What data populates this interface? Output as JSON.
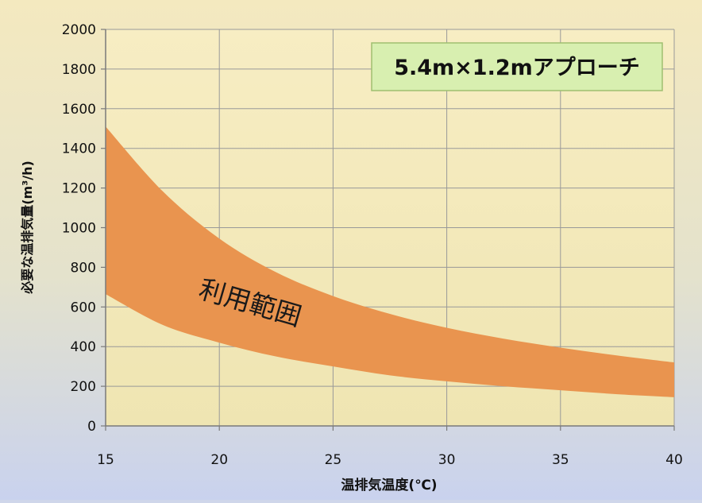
{
  "chart_data": {
    "type": "area",
    "title": "",
    "xlabel": "温排気温度(℃)",
    "ylabel": "必要な温排気量(m³/h)",
    "xlim": [
      15,
      40
    ],
    "ylim": [
      0,
      2000
    ],
    "x_ticks": [
      15,
      20,
      25,
      30,
      35,
      40
    ],
    "y_ticks": [
      0,
      200,
      400,
      600,
      800,
      1000,
      1200,
      1400,
      1600,
      1800,
      2000
    ],
    "grid": true,
    "band": {
      "name": "",
      "x": [
        15,
        17.5,
        20,
        22.5,
        25,
        27.5,
        30,
        32.5,
        35,
        37.5,
        40
      ],
      "upper": [
        1510,
        1185,
        945,
        775,
        655,
        565,
        495,
        440,
        395,
        355,
        320
      ],
      "lower": [
        665,
        510,
        420,
        350,
        300,
        255,
        225,
        200,
        180,
        160,
        145
      ]
    },
    "annotation_label": "利用範囲",
    "inset_label": "5.4m×1.2mアプローチ",
    "colors": {
      "band": "#e9944f",
      "plot_bg_top": "#f6ecc0",
      "plot_bg_bottom": "#efe6b0",
      "label_box": "#d8efb0",
      "grid": "#999999",
      "axis": "#7a7a7a"
    }
  }
}
